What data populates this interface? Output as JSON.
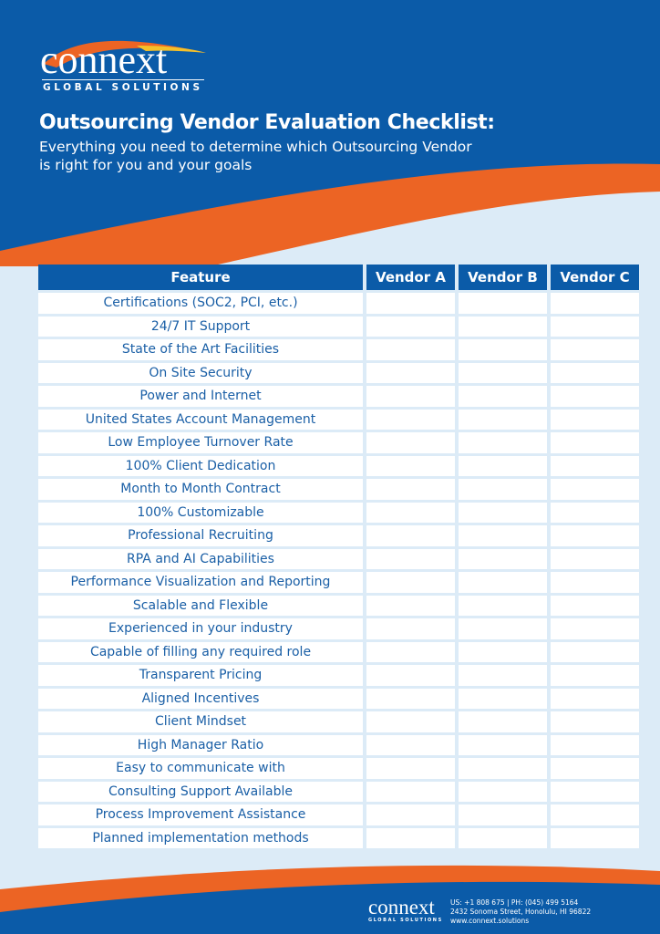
{
  "brand": {
    "name": "connext",
    "tagline": "GLOBAL SOLUTIONS"
  },
  "colors": {
    "primary_blue": "#0b5ba8",
    "accent_orange": "#ec6424",
    "background": "#dcebf7",
    "text_blue": "#1a5fa6"
  },
  "header": {
    "title": "Outsourcing Vendor Evaluation Checklist:",
    "subtitle": "Everything you need to determine which Outsourcing Vendor is right for you and your goals"
  },
  "table": {
    "columns": [
      "Feature",
      "Vendor A",
      "Vendor B",
      "Vendor C"
    ],
    "rows": [
      "Certifications (SOC2, PCI, etc.)",
      "24/7 IT Support",
      "State of the Art Facilities",
      "On Site Security",
      "Power and Internet",
      "United States Account Management",
      "Low Employee Turnover Rate",
      "100% Client Dedication",
      "Month to Month Contract",
      "100% Customizable",
      "Professional Recruiting",
      "RPA and AI Capabilities",
      "Performance Visualization and Reporting",
      "Scalable and Flexible",
      "Experienced in your industry",
      "Capable of filling any required role",
      "Transparent Pricing",
      "Aligned Incentives",
      "Client Mindset",
      "High Manager Ratio",
      "Easy to communicate with",
      "Consulting Support Available",
      "Process Improvement Assistance",
      "Planned implementation methods"
    ]
  },
  "footer": {
    "phone": "US: +1 808 675 | PH: (045) 499 5164",
    "address": "2432 Sonoma Street, Honolulu, HI 96822",
    "website": "www.connext.solutions"
  }
}
